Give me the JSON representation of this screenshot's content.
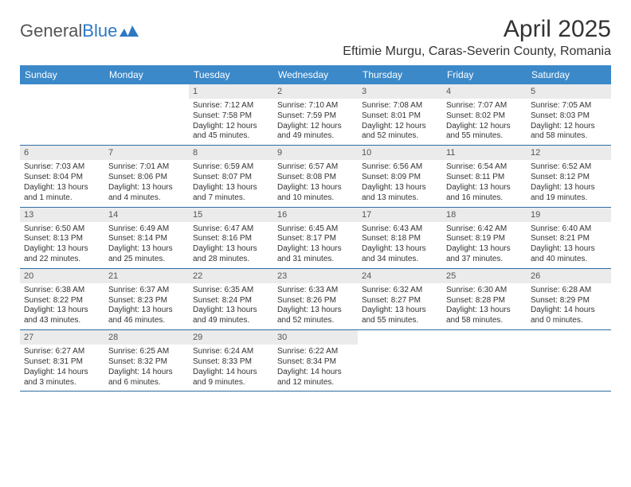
{
  "logo": {
    "text1": "General",
    "text2": "Blue"
  },
  "title": "April 2025",
  "subtitle": "Eftimie Murgu, Caras-Severin County, Romania",
  "colors": {
    "header_bg": "#3b89c9",
    "header_text": "#ffffff",
    "daynum_bg": "#ebebeb",
    "week_border": "#2e6da4",
    "logo_gray": "#555555",
    "logo_blue": "#2e78c2"
  },
  "fonts": {
    "title_size": 30,
    "subtitle_size": 16,
    "dayhead_size": 12,
    "daynum_size": 11,
    "body_size": 10
  },
  "day_headers": [
    "Sunday",
    "Monday",
    "Tuesday",
    "Wednesday",
    "Thursday",
    "Friday",
    "Saturday"
  ],
  "weeks": [
    [
      {
        "n": "",
        "sunrise": "",
        "sunset": "",
        "daylight": ""
      },
      {
        "n": "",
        "sunrise": "",
        "sunset": "",
        "daylight": ""
      },
      {
        "n": "1",
        "sunrise": "Sunrise: 7:12 AM",
        "sunset": "Sunset: 7:58 PM",
        "daylight": "Daylight: 12 hours and 45 minutes."
      },
      {
        "n": "2",
        "sunrise": "Sunrise: 7:10 AM",
        "sunset": "Sunset: 7:59 PM",
        "daylight": "Daylight: 12 hours and 49 minutes."
      },
      {
        "n": "3",
        "sunrise": "Sunrise: 7:08 AM",
        "sunset": "Sunset: 8:01 PM",
        "daylight": "Daylight: 12 hours and 52 minutes."
      },
      {
        "n": "4",
        "sunrise": "Sunrise: 7:07 AM",
        "sunset": "Sunset: 8:02 PM",
        "daylight": "Daylight: 12 hours and 55 minutes."
      },
      {
        "n": "5",
        "sunrise": "Sunrise: 7:05 AM",
        "sunset": "Sunset: 8:03 PM",
        "daylight": "Daylight: 12 hours and 58 minutes."
      }
    ],
    [
      {
        "n": "6",
        "sunrise": "Sunrise: 7:03 AM",
        "sunset": "Sunset: 8:04 PM",
        "daylight": "Daylight: 13 hours and 1 minute."
      },
      {
        "n": "7",
        "sunrise": "Sunrise: 7:01 AM",
        "sunset": "Sunset: 8:06 PM",
        "daylight": "Daylight: 13 hours and 4 minutes."
      },
      {
        "n": "8",
        "sunrise": "Sunrise: 6:59 AM",
        "sunset": "Sunset: 8:07 PM",
        "daylight": "Daylight: 13 hours and 7 minutes."
      },
      {
        "n": "9",
        "sunrise": "Sunrise: 6:57 AM",
        "sunset": "Sunset: 8:08 PM",
        "daylight": "Daylight: 13 hours and 10 minutes."
      },
      {
        "n": "10",
        "sunrise": "Sunrise: 6:56 AM",
        "sunset": "Sunset: 8:09 PM",
        "daylight": "Daylight: 13 hours and 13 minutes."
      },
      {
        "n": "11",
        "sunrise": "Sunrise: 6:54 AM",
        "sunset": "Sunset: 8:11 PM",
        "daylight": "Daylight: 13 hours and 16 minutes."
      },
      {
        "n": "12",
        "sunrise": "Sunrise: 6:52 AM",
        "sunset": "Sunset: 8:12 PM",
        "daylight": "Daylight: 13 hours and 19 minutes."
      }
    ],
    [
      {
        "n": "13",
        "sunrise": "Sunrise: 6:50 AM",
        "sunset": "Sunset: 8:13 PM",
        "daylight": "Daylight: 13 hours and 22 minutes."
      },
      {
        "n": "14",
        "sunrise": "Sunrise: 6:49 AM",
        "sunset": "Sunset: 8:14 PM",
        "daylight": "Daylight: 13 hours and 25 minutes."
      },
      {
        "n": "15",
        "sunrise": "Sunrise: 6:47 AM",
        "sunset": "Sunset: 8:16 PM",
        "daylight": "Daylight: 13 hours and 28 minutes."
      },
      {
        "n": "16",
        "sunrise": "Sunrise: 6:45 AM",
        "sunset": "Sunset: 8:17 PM",
        "daylight": "Daylight: 13 hours and 31 minutes."
      },
      {
        "n": "17",
        "sunrise": "Sunrise: 6:43 AM",
        "sunset": "Sunset: 8:18 PM",
        "daylight": "Daylight: 13 hours and 34 minutes."
      },
      {
        "n": "18",
        "sunrise": "Sunrise: 6:42 AM",
        "sunset": "Sunset: 8:19 PM",
        "daylight": "Daylight: 13 hours and 37 minutes."
      },
      {
        "n": "19",
        "sunrise": "Sunrise: 6:40 AM",
        "sunset": "Sunset: 8:21 PM",
        "daylight": "Daylight: 13 hours and 40 minutes."
      }
    ],
    [
      {
        "n": "20",
        "sunrise": "Sunrise: 6:38 AM",
        "sunset": "Sunset: 8:22 PM",
        "daylight": "Daylight: 13 hours and 43 minutes."
      },
      {
        "n": "21",
        "sunrise": "Sunrise: 6:37 AM",
        "sunset": "Sunset: 8:23 PM",
        "daylight": "Daylight: 13 hours and 46 minutes."
      },
      {
        "n": "22",
        "sunrise": "Sunrise: 6:35 AM",
        "sunset": "Sunset: 8:24 PM",
        "daylight": "Daylight: 13 hours and 49 minutes."
      },
      {
        "n": "23",
        "sunrise": "Sunrise: 6:33 AM",
        "sunset": "Sunset: 8:26 PM",
        "daylight": "Daylight: 13 hours and 52 minutes."
      },
      {
        "n": "24",
        "sunrise": "Sunrise: 6:32 AM",
        "sunset": "Sunset: 8:27 PM",
        "daylight": "Daylight: 13 hours and 55 minutes."
      },
      {
        "n": "25",
        "sunrise": "Sunrise: 6:30 AM",
        "sunset": "Sunset: 8:28 PM",
        "daylight": "Daylight: 13 hours and 58 minutes."
      },
      {
        "n": "26",
        "sunrise": "Sunrise: 6:28 AM",
        "sunset": "Sunset: 8:29 PM",
        "daylight": "Daylight: 14 hours and 0 minutes."
      }
    ],
    [
      {
        "n": "27",
        "sunrise": "Sunrise: 6:27 AM",
        "sunset": "Sunset: 8:31 PM",
        "daylight": "Daylight: 14 hours and 3 minutes."
      },
      {
        "n": "28",
        "sunrise": "Sunrise: 6:25 AM",
        "sunset": "Sunset: 8:32 PM",
        "daylight": "Daylight: 14 hours and 6 minutes."
      },
      {
        "n": "29",
        "sunrise": "Sunrise: 6:24 AM",
        "sunset": "Sunset: 8:33 PM",
        "daylight": "Daylight: 14 hours and 9 minutes."
      },
      {
        "n": "30",
        "sunrise": "Sunrise: 6:22 AM",
        "sunset": "Sunset: 8:34 PM",
        "daylight": "Daylight: 14 hours and 12 minutes."
      },
      {
        "n": "",
        "sunrise": "",
        "sunset": "",
        "daylight": ""
      },
      {
        "n": "",
        "sunrise": "",
        "sunset": "",
        "daylight": ""
      },
      {
        "n": "",
        "sunrise": "",
        "sunset": "",
        "daylight": ""
      }
    ]
  ]
}
